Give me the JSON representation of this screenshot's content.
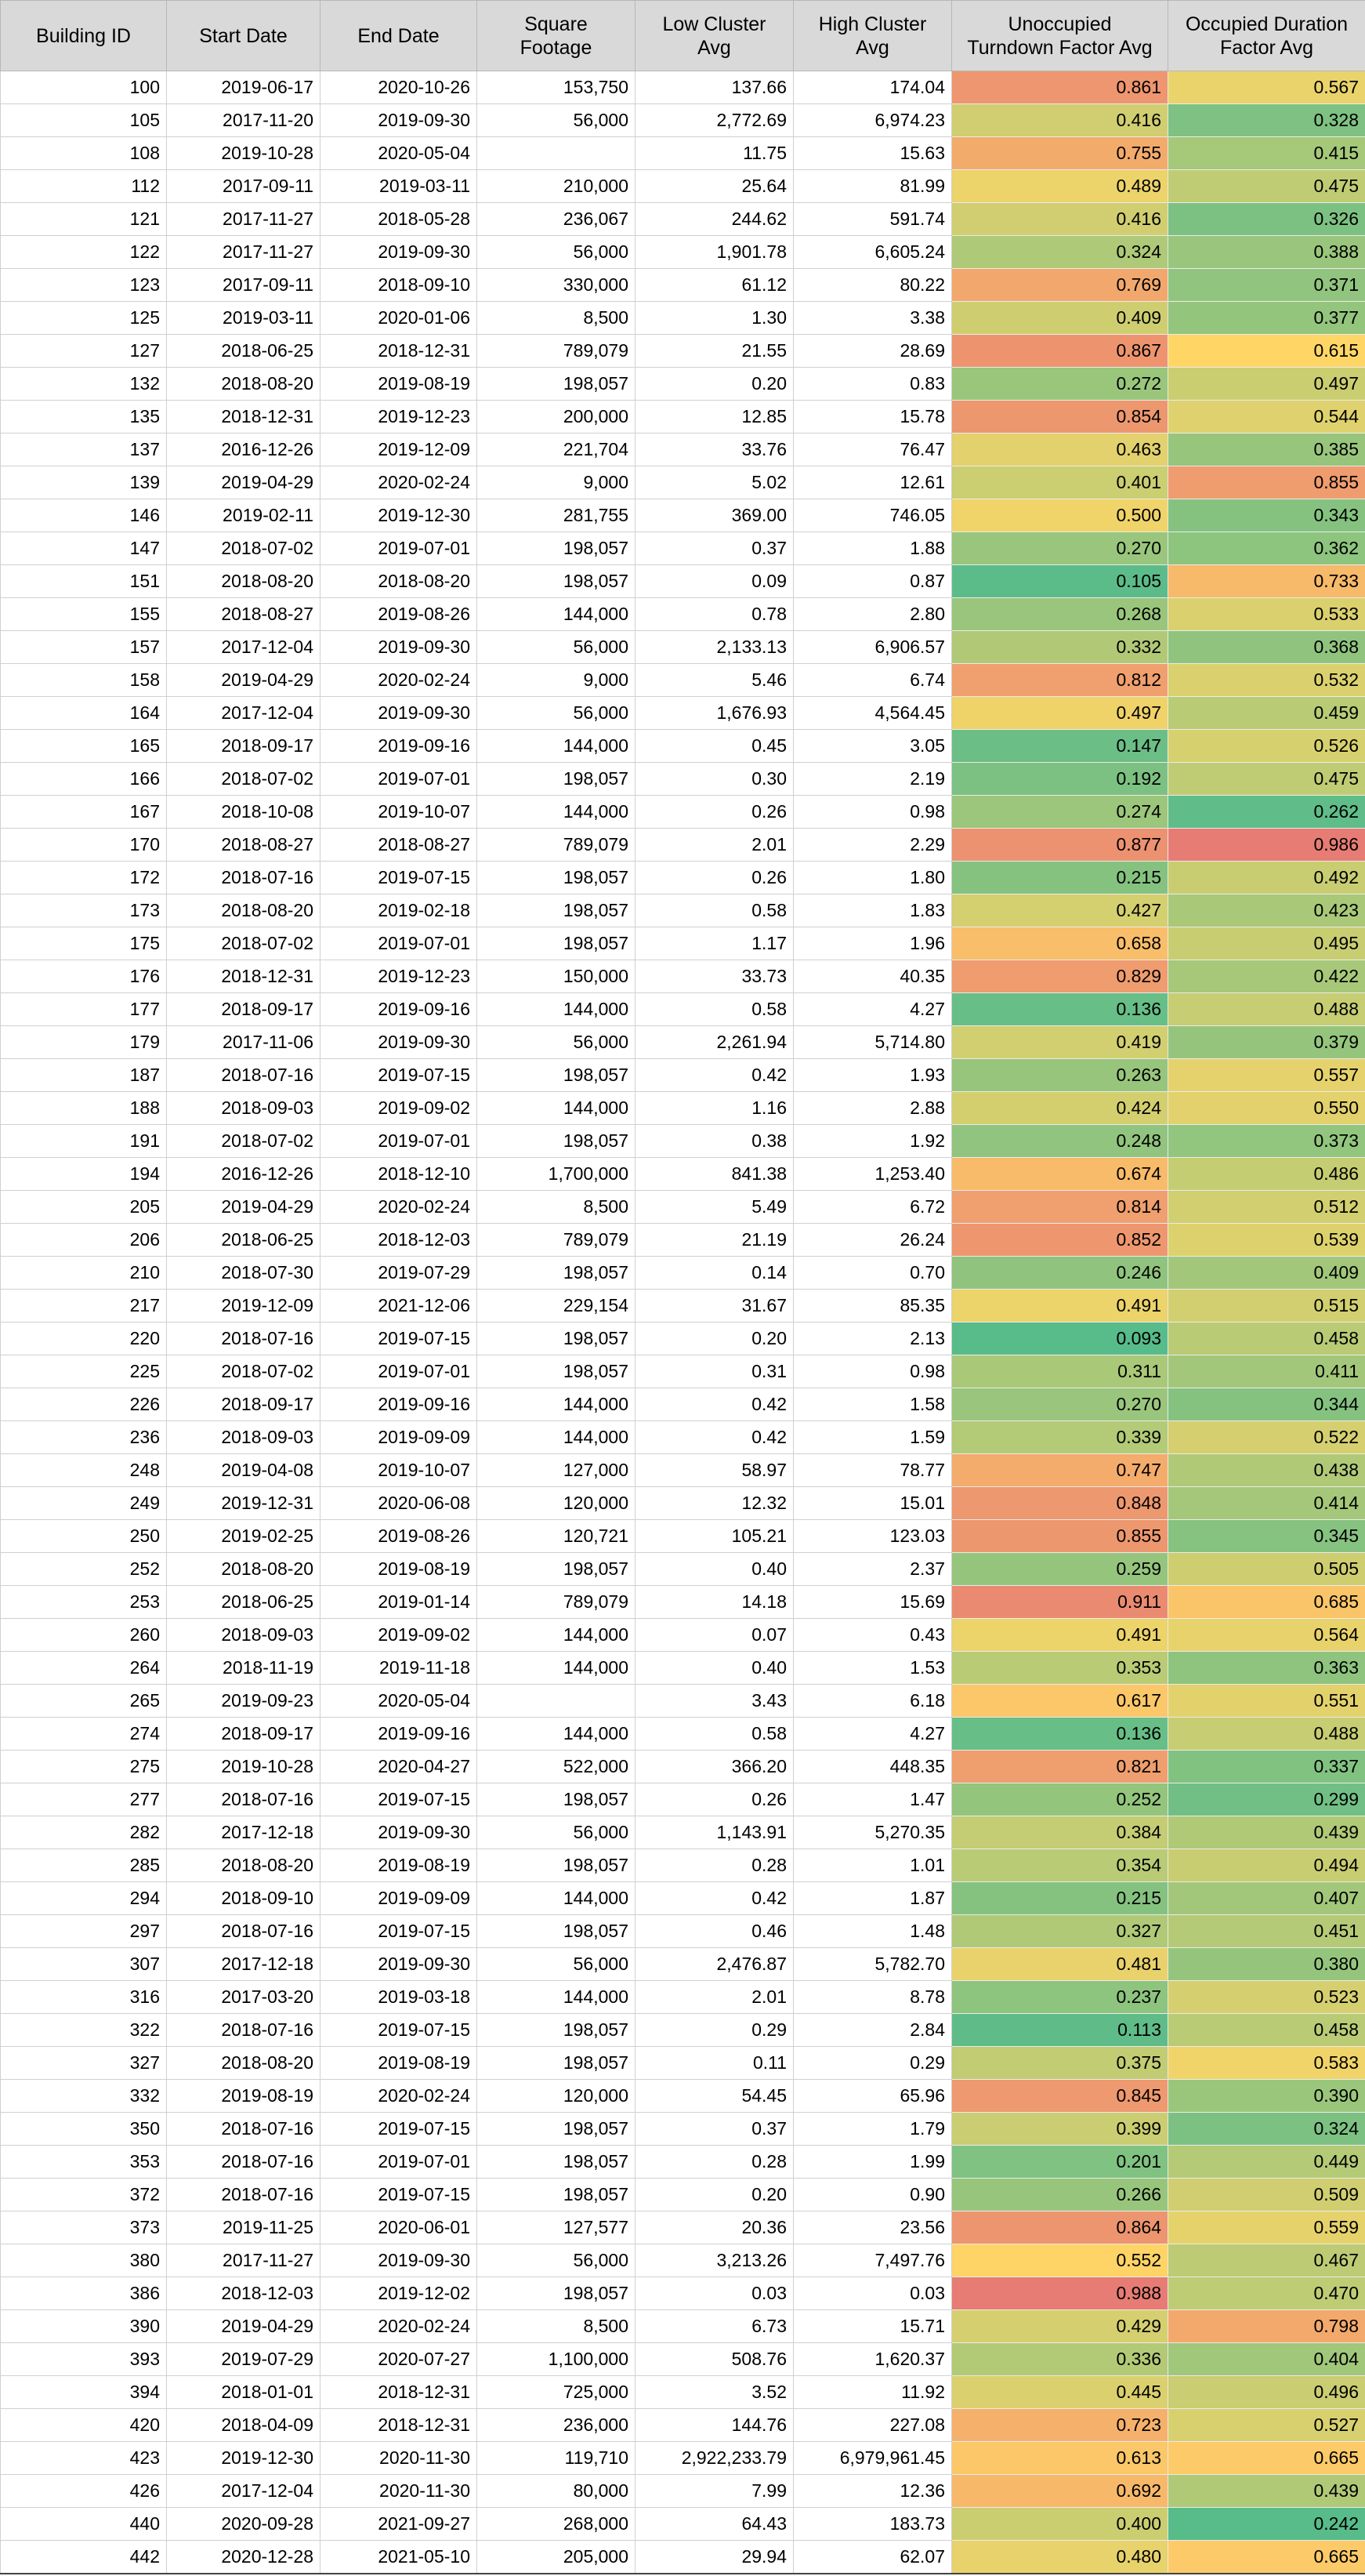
{
  "headers": [
    "Building ID",
    "Start Date",
    "End Date",
    "Square\nFootage",
    "Low Cluster\nAvg",
    "High Cluster\nAvg",
    "Unoccupied\nTurndown Factor Avg",
    "Occupied Duration\nFactor Avg"
  ],
  "rows": [
    [
      "100",
      "2019-06-17",
      "2020-10-26",
      "153,750",
      "137.66",
      "174.04",
      "0.861",
      "0.567"
    ],
    [
      "105",
      "2017-11-20",
      "2019-09-30",
      "56,000",
      "2,772.69",
      "6,974.23",
      "0.416",
      "0.328"
    ],
    [
      "108",
      "2019-10-28",
      "2020-05-04",
      "",
      "11.75",
      "15.63",
      "0.755",
      "0.415"
    ],
    [
      "112",
      "2017-09-11",
      "2019-03-11",
      "210,000",
      "25.64",
      "81.99",
      "0.489",
      "0.475"
    ],
    [
      "121",
      "2017-11-27",
      "2018-05-28",
      "236,067",
      "244.62",
      "591.74",
      "0.416",
      "0.326"
    ],
    [
      "122",
      "2017-11-27",
      "2019-09-30",
      "56,000",
      "1,901.78",
      "6,605.24",
      "0.324",
      "0.388"
    ],
    [
      "123",
      "2017-09-11",
      "2018-09-10",
      "330,000",
      "61.12",
      "80.22",
      "0.769",
      "0.371"
    ],
    [
      "125",
      "2019-03-11",
      "2020-01-06",
      "8,500",
      "1.30",
      "3.38",
      "0.409",
      "0.377"
    ],
    [
      "127",
      "2018-06-25",
      "2018-12-31",
      "789,079",
      "21.55",
      "28.69",
      "0.867",
      "0.615"
    ],
    [
      "132",
      "2018-08-20",
      "2019-08-19",
      "198,057",
      "0.20",
      "0.83",
      "0.272",
      "0.497"
    ],
    [
      "135",
      "2018-12-31",
      "2019-12-23",
      "200,000",
      "12.85",
      "15.78",
      "0.854",
      "0.544"
    ],
    [
      "137",
      "2016-12-26",
      "2019-12-09",
      "221,704",
      "33.76",
      "76.47",
      "0.463",
      "0.385"
    ],
    [
      "139",
      "2019-04-29",
      "2020-02-24",
      "9,000",
      "5.02",
      "12.61",
      "0.401",
      "0.855"
    ],
    [
      "146",
      "2019-02-11",
      "2019-12-30",
      "281,755",
      "369.00",
      "746.05",
      "0.500",
      "0.343"
    ],
    [
      "147",
      "2018-07-02",
      "2019-07-01",
      "198,057",
      "0.37",
      "1.88",
      "0.270",
      "0.362"
    ],
    [
      "151",
      "2018-08-20",
      "2018-08-20",
      "198,057",
      "0.09",
      "0.87",
      "0.105",
      "0.733"
    ],
    [
      "155",
      "2018-08-27",
      "2019-08-26",
      "144,000",
      "0.78",
      "2.80",
      "0.268",
      "0.533"
    ],
    [
      "157",
      "2017-12-04",
      "2019-09-30",
      "56,000",
      "2,133.13",
      "6,906.57",
      "0.332",
      "0.368"
    ],
    [
      "158",
      "2019-04-29",
      "2020-02-24",
      "9,000",
      "5.46",
      "6.74",
      "0.812",
      "0.532"
    ],
    [
      "164",
      "2017-12-04",
      "2019-09-30",
      "56,000",
      "1,676.93",
      "4,564.45",
      "0.497",
      "0.459"
    ],
    [
      "165",
      "2018-09-17",
      "2019-09-16",
      "144,000",
      "0.45",
      "3.05",
      "0.147",
      "0.526"
    ],
    [
      "166",
      "2018-07-02",
      "2019-07-01",
      "198,057",
      "0.30",
      "2.19",
      "0.192",
      "0.475"
    ],
    [
      "167",
      "2018-10-08",
      "2019-10-07",
      "144,000",
      "0.26",
      "0.98",
      "0.274",
      "0.262"
    ],
    [
      "170",
      "2018-08-27",
      "2018-08-27",
      "789,079",
      "2.01",
      "2.29",
      "0.877",
      "0.986"
    ],
    [
      "172",
      "2018-07-16",
      "2019-07-15",
      "198,057",
      "0.26",
      "1.80",
      "0.215",
      "0.492"
    ],
    [
      "173",
      "2018-08-20",
      "2019-02-18",
      "198,057",
      "0.58",
      "1.83",
      "0.427",
      "0.423"
    ],
    [
      "175",
      "2018-07-02",
      "2019-07-01",
      "198,057",
      "1.17",
      "1.96",
      "0.658",
      "0.495"
    ],
    [
      "176",
      "2018-12-31",
      "2019-12-23",
      "150,000",
      "33.73",
      "40.35",
      "0.829",
      "0.422"
    ],
    [
      "177",
      "2018-09-17",
      "2019-09-16",
      "144,000",
      "0.58",
      "4.27",
      "0.136",
      "0.488"
    ],
    [
      "179",
      "2017-11-06",
      "2019-09-30",
      "56,000",
      "2,261.94",
      "5,714.80",
      "0.419",
      "0.379"
    ],
    [
      "187",
      "2018-07-16",
      "2019-07-15",
      "198,057",
      "0.42",
      "1.93",
      "0.263",
      "0.557"
    ],
    [
      "188",
      "2018-09-03",
      "2019-09-02",
      "144,000",
      "1.16",
      "2.88",
      "0.424",
      "0.550"
    ],
    [
      "191",
      "2018-07-02",
      "2019-07-01",
      "198,057",
      "0.38",
      "1.92",
      "0.248",
      "0.373"
    ],
    [
      "194",
      "2016-12-26",
      "2018-12-10",
      "1,700,000",
      "841.38",
      "1,253.40",
      "0.674",
      "0.486"
    ],
    [
      "205",
      "2019-04-29",
      "2020-02-24",
      "8,500",
      "5.49",
      "6.72",
      "0.814",
      "0.512"
    ],
    [
      "206",
      "2018-06-25",
      "2018-12-03",
      "789,079",
      "21.19",
      "26.24",
      "0.852",
      "0.539"
    ],
    [
      "210",
      "2018-07-30",
      "2019-07-29",
      "198,057",
      "0.14",
      "0.70",
      "0.246",
      "0.409"
    ],
    [
      "217",
      "2019-12-09",
      "2021-12-06",
      "229,154",
      "31.67",
      "85.35",
      "0.491",
      "0.515"
    ],
    [
      "220",
      "2018-07-16",
      "2019-07-15",
      "198,057",
      "0.20",
      "2.13",
      "0.093",
      "0.458"
    ],
    [
      "225",
      "2018-07-02",
      "2019-07-01",
      "198,057",
      "0.31",
      "0.98",
      "0.311",
      "0.411"
    ],
    [
      "226",
      "2018-09-17",
      "2019-09-16",
      "144,000",
      "0.42",
      "1.58",
      "0.270",
      "0.344"
    ],
    [
      "236",
      "2018-09-03",
      "2019-09-09",
      "144,000",
      "0.42",
      "1.59",
      "0.339",
      "0.522"
    ],
    [
      "248",
      "2019-04-08",
      "2019-10-07",
      "127,000",
      "58.97",
      "78.77",
      "0.747",
      "0.438"
    ],
    [
      "249",
      "2019-12-31",
      "2020-06-08",
      "120,000",
      "12.32",
      "15.01",
      "0.848",
      "0.414"
    ],
    [
      "250",
      "2019-02-25",
      "2019-08-26",
      "120,721",
      "105.21",
      "123.03",
      "0.855",
      "0.345"
    ],
    [
      "252",
      "2018-08-20",
      "2019-08-19",
      "198,057",
      "0.40",
      "2.37",
      "0.259",
      "0.505"
    ],
    [
      "253",
      "2018-06-25",
      "2019-01-14",
      "789,079",
      "14.18",
      "15.69",
      "0.911",
      "0.685"
    ],
    [
      "260",
      "2018-09-03",
      "2019-09-02",
      "144,000",
      "0.07",
      "0.43",
      "0.491",
      "0.564"
    ],
    [
      "264",
      "2018-11-19",
      "2019-11-18",
      "144,000",
      "0.40",
      "1.53",
      "0.353",
      "0.363"
    ],
    [
      "265",
      "2019-09-23",
      "2020-05-04",
      "",
      "3.43",
      "6.18",
      "0.617",
      "0.551"
    ],
    [
      "274",
      "2018-09-17",
      "2019-09-16",
      "144,000",
      "0.58",
      "4.27",
      "0.136",
      "0.488"
    ],
    [
      "275",
      "2019-10-28",
      "2020-04-27",
      "522,000",
      "366.20",
      "448.35",
      "0.821",
      "0.337"
    ],
    [
      "277",
      "2018-07-16",
      "2019-07-15",
      "198,057",
      "0.26",
      "1.47",
      "0.252",
      "0.299"
    ],
    [
      "282",
      "2017-12-18",
      "2019-09-30",
      "56,000",
      "1,143.91",
      "5,270.35",
      "0.384",
      "0.439"
    ],
    [
      "285",
      "2018-08-20",
      "2019-08-19",
      "198,057",
      "0.28",
      "1.01",
      "0.354",
      "0.494"
    ],
    [
      "294",
      "2018-09-10",
      "2019-09-09",
      "144,000",
      "0.42",
      "1.87",
      "0.215",
      "0.407"
    ],
    [
      "297",
      "2018-07-16",
      "2019-07-15",
      "198,057",
      "0.46",
      "1.48",
      "0.327",
      "0.451"
    ],
    [
      "307",
      "2017-12-18",
      "2019-09-30",
      "56,000",
      "2,476.87",
      "5,782.70",
      "0.481",
      "0.380"
    ],
    [
      "316",
      "2017-03-20",
      "2019-03-18",
      "144,000",
      "2.01",
      "8.78",
      "0.237",
      "0.523"
    ],
    [
      "322",
      "2018-07-16",
      "2019-07-15",
      "198,057",
      "0.29",
      "2.84",
      "0.113",
      "0.458"
    ],
    [
      "327",
      "2018-08-20",
      "2019-08-19",
      "198,057",
      "0.11",
      "0.29",
      "0.375",
      "0.583"
    ],
    [
      "332",
      "2019-08-19",
      "2020-02-24",
      "120,000",
      "54.45",
      "65.96",
      "0.845",
      "0.390"
    ],
    [
      "350",
      "2018-07-16",
      "2019-07-15",
      "198,057",
      "0.37",
      "1.79",
      "0.399",
      "0.324"
    ],
    [
      "353",
      "2018-07-16",
      "2019-07-01",
      "198,057",
      "0.28",
      "1.99",
      "0.201",
      "0.449"
    ],
    [
      "372",
      "2018-07-16",
      "2019-07-15",
      "198,057",
      "0.20",
      "0.90",
      "0.266",
      "0.509"
    ],
    [
      "373",
      "2019-11-25",
      "2020-06-01",
      "127,577",
      "20.36",
      "23.56",
      "0.864",
      "0.559"
    ],
    [
      "380",
      "2017-11-27",
      "2019-09-30",
      "56,000",
      "3,213.26",
      "7,497.76",
      "0.552",
      "0.467"
    ],
    [
      "386",
      "2018-12-03",
      "2019-12-02",
      "198,057",
      "0.03",
      "0.03",
      "0.988",
      "0.470"
    ],
    [
      "390",
      "2019-04-29",
      "2020-02-24",
      "8,500",
      "6.73",
      "15.71",
      "0.429",
      "0.798"
    ],
    [
      "393",
      "2019-07-29",
      "2020-07-27",
      "1,100,000",
      "508.76",
      "1,620.37",
      "0.336",
      "0.404"
    ],
    [
      "394",
      "2018-01-01",
      "2018-12-31",
      "725,000",
      "3.52",
      "11.92",
      "0.445",
      "0.496"
    ],
    [
      "420",
      "2018-04-09",
      "2018-12-31",
      "236,000",
      "144.76",
      "227.08",
      "0.723",
      "0.527"
    ],
    [
      "423",
      "2019-12-30",
      "2020-11-30",
      "119,710",
      "2,922,233.79",
      "6,979,961.45",
      "0.613",
      "0.665"
    ],
    [
      "426",
      "2017-12-04",
      "2020-11-30",
      "80,000",
      "7.99",
      "12.36",
      "0.692",
      "0.439"
    ],
    [
      "440",
      "2020-09-28",
      "2021-09-27",
      "268,000",
      "64.43",
      "183.73",
      "0.400",
      "0.242"
    ],
    [
      "442",
      "2020-12-28",
      "2021-05-10",
      "205,000",
      "29.94",
      "62.07",
      "0.480",
      "0.665"
    ]
  ],
  "heatmap_colors": {
    "low": "#57bb8a",
    "mid": "#ffd666",
    "high": "#e67c73"
  },
  "heatmap_ranges": {
    "unoccupied_turndown": [
      0.093,
      0.988
    ],
    "occupied_duration": [
      0.242,
      0.986
    ]
  }
}
